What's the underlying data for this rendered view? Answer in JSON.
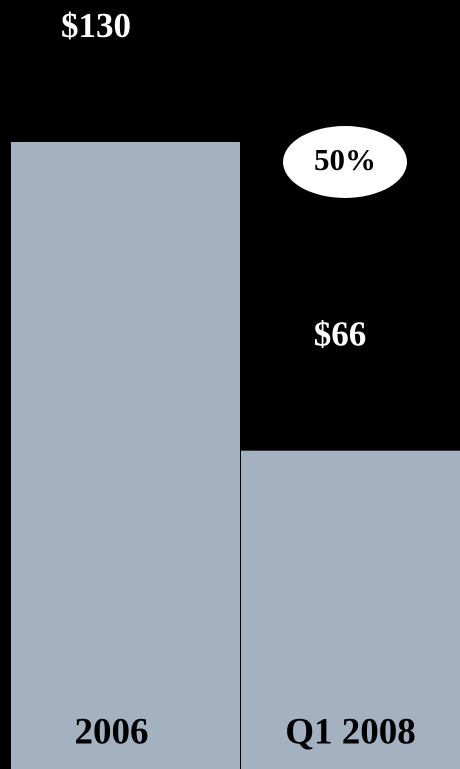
{
  "chart_data": {
    "type": "bar",
    "categories": [
      "2006",
      "Q1 2008"
    ],
    "values": [
      130,
      66
    ],
    "value_labels": [
      "$130",
      "$66"
    ],
    "color": "#a3b1c1",
    "annotation": "50%"
  }
}
